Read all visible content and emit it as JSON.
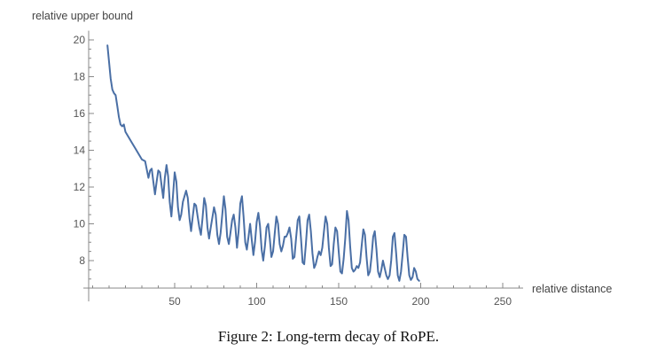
{
  "chart_data": {
    "type": "line",
    "ylabel": "relative upper bound",
    "xlabel": "relative distance",
    "xlim": [
      0,
      265
    ],
    "ylim": [
      6.8,
      20.5
    ],
    "x_ticks": [
      50,
      100,
      150,
      200,
      250
    ],
    "y_ticks": [
      8,
      10,
      12,
      14,
      16,
      18,
      20
    ],
    "grid": false,
    "series": [
      {
        "name": "relative upper bound",
        "color": "#4a6fa5",
        "points": [
          [
            9,
            19.7
          ],
          [
            10,
            18.8
          ],
          [
            11,
            17.9
          ],
          [
            12,
            17.3
          ],
          [
            13,
            17.1
          ],
          [
            14,
            17.0
          ],
          [
            15,
            16.4
          ],
          [
            16,
            15.8
          ],
          [
            17,
            15.4
          ],
          [
            18,
            15.3
          ],
          [
            19,
            15.4
          ],
          [
            20,
            15.0
          ],
          [
            22,
            14.7
          ],
          [
            24,
            14.4
          ],
          [
            26,
            14.1
          ],
          [
            28,
            13.8
          ],
          [
            30,
            13.5
          ],
          [
            32,
            13.4
          ],
          [
            34,
            12.5
          ],
          [
            35,
            12.9
          ],
          [
            36,
            13.0
          ],
          [
            37,
            12.3
          ],
          [
            38,
            11.6
          ],
          [
            39,
            12.3
          ],
          [
            40,
            12.9
          ],
          [
            41,
            12.8
          ],
          [
            42,
            12.1
          ],
          [
            43,
            11.4
          ],
          [
            44,
            12.5
          ],
          [
            45,
            13.2
          ],
          [
            46,
            12.6
          ],
          [
            47,
            11.2
          ],
          [
            48,
            10.4
          ],
          [
            49,
            11.6
          ],
          [
            50,
            12.8
          ],
          [
            51,
            12.3
          ],
          [
            52,
            10.9
          ],
          [
            53,
            10.2
          ],
          [
            54,
            10.5
          ],
          [
            55,
            11.2
          ],
          [
            57,
            11.8
          ],
          [
            58,
            11.4
          ],
          [
            59,
            10.3
          ],
          [
            60,
            9.6
          ],
          [
            61,
            10.4
          ],
          [
            62,
            11.1
          ],
          [
            63,
            11.0
          ],
          [
            64,
            10.4
          ],
          [
            65,
            9.8
          ],
          [
            66,
            9.4
          ],
          [
            67,
            10.3
          ],
          [
            68,
            11.4
          ],
          [
            69,
            11.0
          ],
          [
            70,
            9.8
          ],
          [
            71,
            9.2
          ],
          [
            72,
            9.8
          ],
          [
            74,
            10.9
          ],
          [
            75,
            10.5
          ],
          [
            76,
            9.4
          ],
          [
            77,
            8.9
          ],
          [
            78,
            9.5
          ],
          [
            79,
            10.5
          ],
          [
            80,
            11.5
          ],
          [
            81,
            10.8
          ],
          [
            82,
            9.3
          ],
          [
            83,
            8.9
          ],
          [
            84,
            9.5
          ],
          [
            85,
            10.2
          ],
          [
            86,
            10.5
          ],
          [
            87,
            9.8
          ],
          [
            88,
            8.7
          ],
          [
            89,
            9.6
          ],
          [
            90,
            11.1
          ],
          [
            91,
            11.5
          ],
          [
            92,
            10.4
          ],
          [
            93,
            9.0
          ],
          [
            94,
            8.6
          ],
          [
            95,
            9.3
          ],
          [
            96,
            10.0
          ],
          [
            97,
            9.1
          ],
          [
            98,
            8.3
          ],
          [
            99,
            9.0
          ],
          [
            100,
            10.1
          ],
          [
            101,
            10.6
          ],
          [
            102,
            9.9
          ],
          [
            103,
            8.6
          ],
          [
            104,
            8.0
          ],
          [
            105,
            8.8
          ],
          [
            106,
            9.8
          ],
          [
            107,
            10.0
          ],
          [
            108,
            9.2
          ],
          [
            109,
            8.2
          ],
          [
            110,
            8.5
          ],
          [
            111,
            9.5
          ],
          [
            112,
            10.4
          ],
          [
            113,
            10.0
          ],
          [
            114,
            8.9
          ],
          [
            115,
            8.5
          ],
          [
            116,
            8.8
          ],
          [
            117,
            9.3
          ],
          [
            118,
            9.3
          ],
          [
            119,
            9.5
          ],
          [
            120,
            9.8
          ],
          [
            121,
            9.2
          ],
          [
            122,
            8.1
          ],
          [
            123,
            8.2
          ],
          [
            124,
            9.2
          ],
          [
            125,
            10.2
          ],
          [
            126,
            10.4
          ],
          [
            127,
            9.2
          ],
          [
            128,
            7.9
          ],
          [
            129,
            7.8
          ],
          [
            130,
            8.9
          ],
          [
            131,
            10.2
          ],
          [
            132,
            10.5
          ],
          [
            133,
            9.6
          ],
          [
            134,
            8.4
          ],
          [
            135,
            7.6
          ],
          [
            136,
            7.8
          ],
          [
            137,
            8.2
          ],
          [
            138,
            8.5
          ],
          [
            139,
            8.3
          ],
          [
            140,
            8.7
          ],
          [
            141,
            9.6
          ],
          [
            142,
            10.4
          ],
          [
            143,
            10.0
          ],
          [
            144,
            8.7
          ],
          [
            145,
            7.7
          ],
          [
            146,
            7.8
          ],
          [
            147,
            8.9
          ],
          [
            148,
            9.8
          ],
          [
            149,
            9.6
          ],
          [
            150,
            8.5
          ],
          [
            151,
            7.4
          ],
          [
            152,
            7.3
          ],
          [
            153,
            8.1
          ],
          [
            154,
            9.2
          ],
          [
            155,
            10.7
          ],
          [
            156,
            10.2
          ],
          [
            157,
            8.8
          ],
          [
            158,
            7.6
          ],
          [
            159,
            7.4
          ],
          [
            160,
            7.5
          ],
          [
            161,
            7.7
          ],
          [
            162,
            7.6
          ],
          [
            163,
            7.9
          ],
          [
            164,
            8.8
          ],
          [
            165,
            9.7
          ],
          [
            166,
            9.4
          ],
          [
            167,
            8.2
          ],
          [
            168,
            7.2
          ],
          [
            169,
            7.4
          ],
          [
            170,
            8.2
          ],
          [
            171,
            9.3
          ],
          [
            172,
            9.6
          ],
          [
            173,
            8.6
          ],
          [
            174,
            7.4
          ],
          [
            175,
            7.1
          ],
          [
            176,
            7.5
          ],
          [
            177,
            8.0
          ],
          [
            178,
            7.6
          ],
          [
            179,
            7.2
          ],
          [
            180,
            7.0
          ],
          [
            181,
            7.2
          ],
          [
            182,
            8.0
          ],
          [
            183,
            9.3
          ],
          [
            184,
            9.5
          ],
          [
            185,
            8.4
          ],
          [
            186,
            7.2
          ],
          [
            187,
            6.9
          ],
          [
            188,
            7.4
          ],
          [
            189,
            8.4
          ],
          [
            190,
            9.4
          ],
          [
            191,
            9.3
          ],
          [
            192,
            8.2
          ],
          [
            193,
            7.2
          ],
          [
            194,
            6.95
          ],
          [
            195,
            7.1
          ],
          [
            196,
            7.6
          ],
          [
            197,
            7.4
          ],
          [
            198,
            7.0
          ],
          [
            199,
            6.9
          ]
        ]
      }
    ]
  },
  "caption": "Figure 2: Long-term decay of RoPE."
}
